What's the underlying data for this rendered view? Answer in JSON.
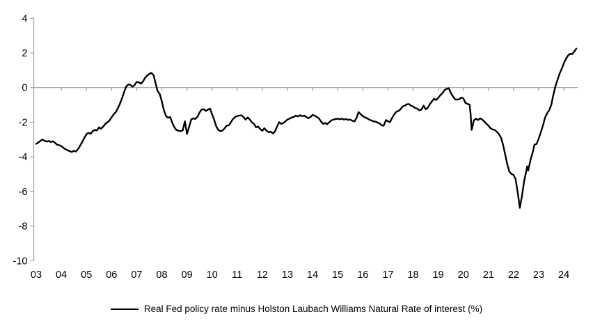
{
  "figure": {
    "background": "#ffffff",
    "axis_color": "#a6a6a6",
    "text_color": "#000000",
    "line_color": "#000000"
  },
  "legend": {
    "label": "Real Fed policy rate minus Holston Laubach Williams Natural Rate of interest (%)"
  },
  "chart_data": {
    "type": "line",
    "title": "",
    "xlabel": "",
    "ylabel": "",
    "ylim": [
      -10,
      4
    ],
    "xlim": [
      2003,
      2024.58
    ],
    "y_ticks": [
      4,
      2,
      0,
      -2,
      -4,
      -6,
      -8,
      -10
    ],
    "x_tick_labels": [
      "03",
      "04",
      "05",
      "06",
      "07",
      "08",
      "09",
      "10",
      "11",
      "12",
      "13",
      "14",
      "15",
      "16",
      "17",
      "18",
      "19",
      "20",
      "21",
      "22",
      "23",
      "24"
    ],
    "grid": "zero-baseline-only",
    "legend_position": "bottom-center",
    "series": [
      {
        "name": "Real Fed policy rate minus Holston Laubach Williams Natural Rate of interest (%)",
        "color": "#000000",
        "points": [
          [
            2003.0,
            -3.25
          ],
          [
            2003.08,
            -3.18
          ],
          [
            2003.17,
            -3.08
          ],
          [
            2003.25,
            -3.0
          ],
          [
            2003.33,
            -3.07
          ],
          [
            2003.42,
            -3.12
          ],
          [
            2003.5,
            -3.08
          ],
          [
            2003.58,
            -3.15
          ],
          [
            2003.67,
            -3.1
          ],
          [
            2003.75,
            -3.2
          ],
          [
            2003.83,
            -3.3
          ],
          [
            2003.92,
            -3.33
          ],
          [
            2004.0,
            -3.38
          ],
          [
            2004.08,
            -3.48
          ],
          [
            2004.17,
            -3.57
          ],
          [
            2004.25,
            -3.62
          ],
          [
            2004.33,
            -3.68
          ],
          [
            2004.42,
            -3.72
          ],
          [
            2004.5,
            -3.65
          ],
          [
            2004.58,
            -3.7
          ],
          [
            2004.67,
            -3.55
          ],
          [
            2004.75,
            -3.35
          ],
          [
            2004.83,
            -3.15
          ],
          [
            2004.92,
            -2.9
          ],
          [
            2005.0,
            -2.7
          ],
          [
            2005.08,
            -2.62
          ],
          [
            2005.17,
            -2.67
          ],
          [
            2005.25,
            -2.52
          ],
          [
            2005.33,
            -2.45
          ],
          [
            2005.42,
            -2.48
          ],
          [
            2005.5,
            -2.3
          ],
          [
            2005.58,
            -2.38
          ],
          [
            2005.67,
            -2.25
          ],
          [
            2005.75,
            -2.1
          ],
          [
            2005.83,
            -2.02
          ],
          [
            2005.92,
            -1.9
          ],
          [
            2006.0,
            -1.72
          ],
          [
            2006.08,
            -1.55
          ],
          [
            2006.17,
            -1.42
          ],
          [
            2006.25,
            -1.2
          ],
          [
            2006.33,
            -0.95
          ],
          [
            2006.42,
            -0.6
          ],
          [
            2006.5,
            -0.25
          ],
          [
            2006.58,
            0.05
          ],
          [
            2006.67,
            0.18
          ],
          [
            2006.75,
            0.15
          ],
          [
            2006.83,
            0.05
          ],
          [
            2006.92,
            0.15
          ],
          [
            2007.0,
            0.32
          ],
          [
            2007.08,
            0.3
          ],
          [
            2007.17,
            0.22
          ],
          [
            2007.25,
            0.35
          ],
          [
            2007.33,
            0.55
          ],
          [
            2007.42,
            0.7
          ],
          [
            2007.5,
            0.78
          ],
          [
            2007.58,
            0.85
          ],
          [
            2007.67,
            0.72
          ],
          [
            2007.75,
            0.25
          ],
          [
            2007.83,
            -0.2
          ],
          [
            2007.92,
            -0.38
          ],
          [
            2008.0,
            -0.8
          ],
          [
            2008.08,
            -1.3
          ],
          [
            2008.17,
            -1.65
          ],
          [
            2008.25,
            -1.75
          ],
          [
            2008.33,
            -1.7
          ],
          [
            2008.42,
            -2.05
          ],
          [
            2008.5,
            -2.3
          ],
          [
            2008.58,
            -2.45
          ],
          [
            2008.67,
            -2.5
          ],
          [
            2008.75,
            -2.52
          ],
          [
            2008.83,
            -2.48
          ],
          [
            2008.92,
            -1.95
          ],
          [
            2009.0,
            -2.68
          ],
          [
            2009.08,
            -2.3
          ],
          [
            2009.17,
            -1.85
          ],
          [
            2009.25,
            -1.78
          ],
          [
            2009.33,
            -1.82
          ],
          [
            2009.42,
            -1.68
          ],
          [
            2009.5,
            -1.45
          ],
          [
            2009.58,
            -1.28
          ],
          [
            2009.67,
            -1.25
          ],
          [
            2009.75,
            -1.35
          ],
          [
            2009.83,
            -1.28
          ],
          [
            2009.92,
            -1.22
          ],
          [
            2010.0,
            -1.55
          ],
          [
            2010.08,
            -1.85
          ],
          [
            2010.17,
            -2.25
          ],
          [
            2010.25,
            -2.45
          ],
          [
            2010.33,
            -2.52
          ],
          [
            2010.42,
            -2.48
          ],
          [
            2010.5,
            -2.35
          ],
          [
            2010.58,
            -2.2
          ],
          [
            2010.67,
            -2.18
          ],
          [
            2010.75,
            -2.0
          ],
          [
            2010.83,
            -1.82
          ],
          [
            2010.92,
            -1.7
          ],
          [
            2011.0,
            -1.65
          ],
          [
            2011.08,
            -1.62
          ],
          [
            2011.17,
            -1.6
          ],
          [
            2011.25,
            -1.7
          ],
          [
            2011.33,
            -1.85
          ],
          [
            2011.42,
            -1.73
          ],
          [
            2011.5,
            -1.85
          ],
          [
            2011.58,
            -2.0
          ],
          [
            2011.67,
            -2.1
          ],
          [
            2011.75,
            -2.3
          ],
          [
            2011.83,
            -2.25
          ],
          [
            2011.92,
            -2.4
          ],
          [
            2012.0,
            -2.5
          ],
          [
            2012.08,
            -2.35
          ],
          [
            2012.17,
            -2.5
          ],
          [
            2012.25,
            -2.58
          ],
          [
            2012.33,
            -2.55
          ],
          [
            2012.42,
            -2.65
          ],
          [
            2012.5,
            -2.55
          ],
          [
            2012.58,
            -2.28
          ],
          [
            2012.67,
            -2.0
          ],
          [
            2012.75,
            -2.1
          ],
          [
            2012.83,
            -2.05
          ],
          [
            2012.92,
            -1.95
          ],
          [
            2013.0,
            -1.85
          ],
          [
            2013.08,
            -1.8
          ],
          [
            2013.17,
            -1.73
          ],
          [
            2013.25,
            -1.7
          ],
          [
            2013.33,
            -1.62
          ],
          [
            2013.42,
            -1.67
          ],
          [
            2013.5,
            -1.6
          ],
          [
            2013.58,
            -1.65
          ],
          [
            2013.67,
            -1.62
          ],
          [
            2013.75,
            -1.7
          ],
          [
            2013.83,
            -1.78
          ],
          [
            2013.92,
            -1.7
          ],
          [
            2014.0,
            -1.58
          ],
          [
            2014.08,
            -1.62
          ],
          [
            2014.17,
            -1.7
          ],
          [
            2014.25,
            -1.78
          ],
          [
            2014.33,
            -1.95
          ],
          [
            2014.42,
            -2.1
          ],
          [
            2014.5,
            -2.05
          ],
          [
            2014.58,
            -2.12
          ],
          [
            2014.67,
            -2.0
          ],
          [
            2014.75,
            -1.9
          ],
          [
            2014.83,
            -1.85
          ],
          [
            2014.92,
            -1.82
          ],
          [
            2015.0,
            -1.8
          ],
          [
            2015.08,
            -1.83
          ],
          [
            2015.17,
            -1.8
          ],
          [
            2015.25,
            -1.85
          ],
          [
            2015.33,
            -1.82
          ],
          [
            2015.42,
            -1.87
          ],
          [
            2015.5,
            -1.85
          ],
          [
            2015.58,
            -1.92
          ],
          [
            2015.67,
            -1.95
          ],
          [
            2015.75,
            -1.75
          ],
          [
            2015.83,
            -1.42
          ],
          [
            2015.92,
            -1.55
          ],
          [
            2016.0,
            -1.65
          ],
          [
            2016.08,
            -1.72
          ],
          [
            2016.17,
            -1.78
          ],
          [
            2016.25,
            -1.85
          ],
          [
            2016.33,
            -1.9
          ],
          [
            2016.42,
            -1.95
          ],
          [
            2016.5,
            -1.97
          ],
          [
            2016.58,
            -2.02
          ],
          [
            2016.67,
            -2.08
          ],
          [
            2016.75,
            -2.18
          ],
          [
            2016.83,
            -2.2
          ],
          [
            2016.92,
            -1.88
          ],
          [
            2017.0,
            -1.95
          ],
          [
            2017.08,
            -2.0
          ],
          [
            2017.17,
            -1.75
          ],
          [
            2017.25,
            -1.55
          ],
          [
            2017.33,
            -1.4
          ],
          [
            2017.42,
            -1.35
          ],
          [
            2017.5,
            -1.25
          ],
          [
            2017.58,
            -1.1
          ],
          [
            2017.67,
            -1.05
          ],
          [
            2017.75,
            -0.97
          ],
          [
            2017.83,
            -0.95
          ],
          [
            2017.92,
            -1.05
          ],
          [
            2018.0,
            -1.1
          ],
          [
            2018.08,
            -1.18
          ],
          [
            2018.17,
            -1.22
          ],
          [
            2018.25,
            -1.32
          ],
          [
            2018.33,
            -1.28
          ],
          [
            2018.42,
            -1.05
          ],
          [
            2018.5,
            -1.25
          ],
          [
            2018.58,
            -1.18
          ],
          [
            2018.67,
            -0.95
          ],
          [
            2018.75,
            -0.8
          ],
          [
            2018.83,
            -0.65
          ],
          [
            2018.92,
            -0.72
          ],
          [
            2019.0,
            -0.6
          ],
          [
            2019.08,
            -0.45
          ],
          [
            2019.17,
            -0.33
          ],
          [
            2019.25,
            -0.15
          ],
          [
            2019.33,
            -0.08
          ],
          [
            2019.42,
            -0.04
          ],
          [
            2019.5,
            -0.3
          ],
          [
            2019.58,
            -0.5
          ],
          [
            2019.67,
            -0.68
          ],
          [
            2019.75,
            -0.7
          ],
          [
            2019.83,
            -0.68
          ],
          [
            2019.92,
            -0.58
          ],
          [
            2020.0,
            -0.62
          ],
          [
            2020.08,
            -0.88
          ],
          [
            2020.17,
            -0.95
          ],
          [
            2020.25,
            -0.98
          ],
          [
            2020.29,
            -1.55
          ],
          [
            2020.33,
            -2.45
          ],
          [
            2020.42,
            -1.9
          ],
          [
            2020.5,
            -1.8
          ],
          [
            2020.58,
            -1.88
          ],
          [
            2020.67,
            -1.78
          ],
          [
            2020.75,
            -1.85
          ],
          [
            2020.83,
            -1.95
          ],
          [
            2020.92,
            -2.1
          ],
          [
            2021.0,
            -2.2
          ],
          [
            2021.08,
            -2.35
          ],
          [
            2021.17,
            -2.42
          ],
          [
            2021.25,
            -2.45
          ],
          [
            2021.33,
            -2.55
          ],
          [
            2021.42,
            -2.7
          ],
          [
            2021.5,
            -2.9
          ],
          [
            2021.58,
            -3.3
          ],
          [
            2021.67,
            -3.9
          ],
          [
            2021.75,
            -4.45
          ],
          [
            2021.83,
            -4.85
          ],
          [
            2021.92,
            -5.0
          ],
          [
            2022.0,
            -5.05
          ],
          [
            2022.08,
            -5.3
          ],
          [
            2022.17,
            -6.1
          ],
          [
            2022.25,
            -6.95
          ],
          [
            2022.33,
            -6.3
          ],
          [
            2022.42,
            -5.4
          ],
          [
            2022.5,
            -4.85
          ],
          [
            2022.54,
            -4.55
          ],
          [
            2022.58,
            -4.8
          ],
          [
            2022.67,
            -4.2
          ],
          [
            2022.75,
            -3.8
          ],
          [
            2022.83,
            -3.3
          ],
          [
            2022.92,
            -3.25
          ],
          [
            2023.0,
            -2.95
          ],
          [
            2023.08,
            -2.6
          ],
          [
            2023.17,
            -2.2
          ],
          [
            2023.25,
            -1.75
          ],
          [
            2023.33,
            -1.5
          ],
          [
            2023.42,
            -1.3
          ],
          [
            2023.5,
            -1.0
          ],
          [
            2023.58,
            -0.45
          ],
          [
            2023.67,
            0.1
          ],
          [
            2023.75,
            0.45
          ],
          [
            2023.83,
            0.8
          ],
          [
            2023.92,
            1.1
          ],
          [
            2024.0,
            1.4
          ],
          [
            2024.08,
            1.65
          ],
          [
            2024.17,
            1.85
          ],
          [
            2024.25,
            1.95
          ],
          [
            2024.33,
            1.93
          ],
          [
            2024.42,
            2.1
          ],
          [
            2024.5,
            2.25
          ]
        ]
      }
    ]
  }
}
